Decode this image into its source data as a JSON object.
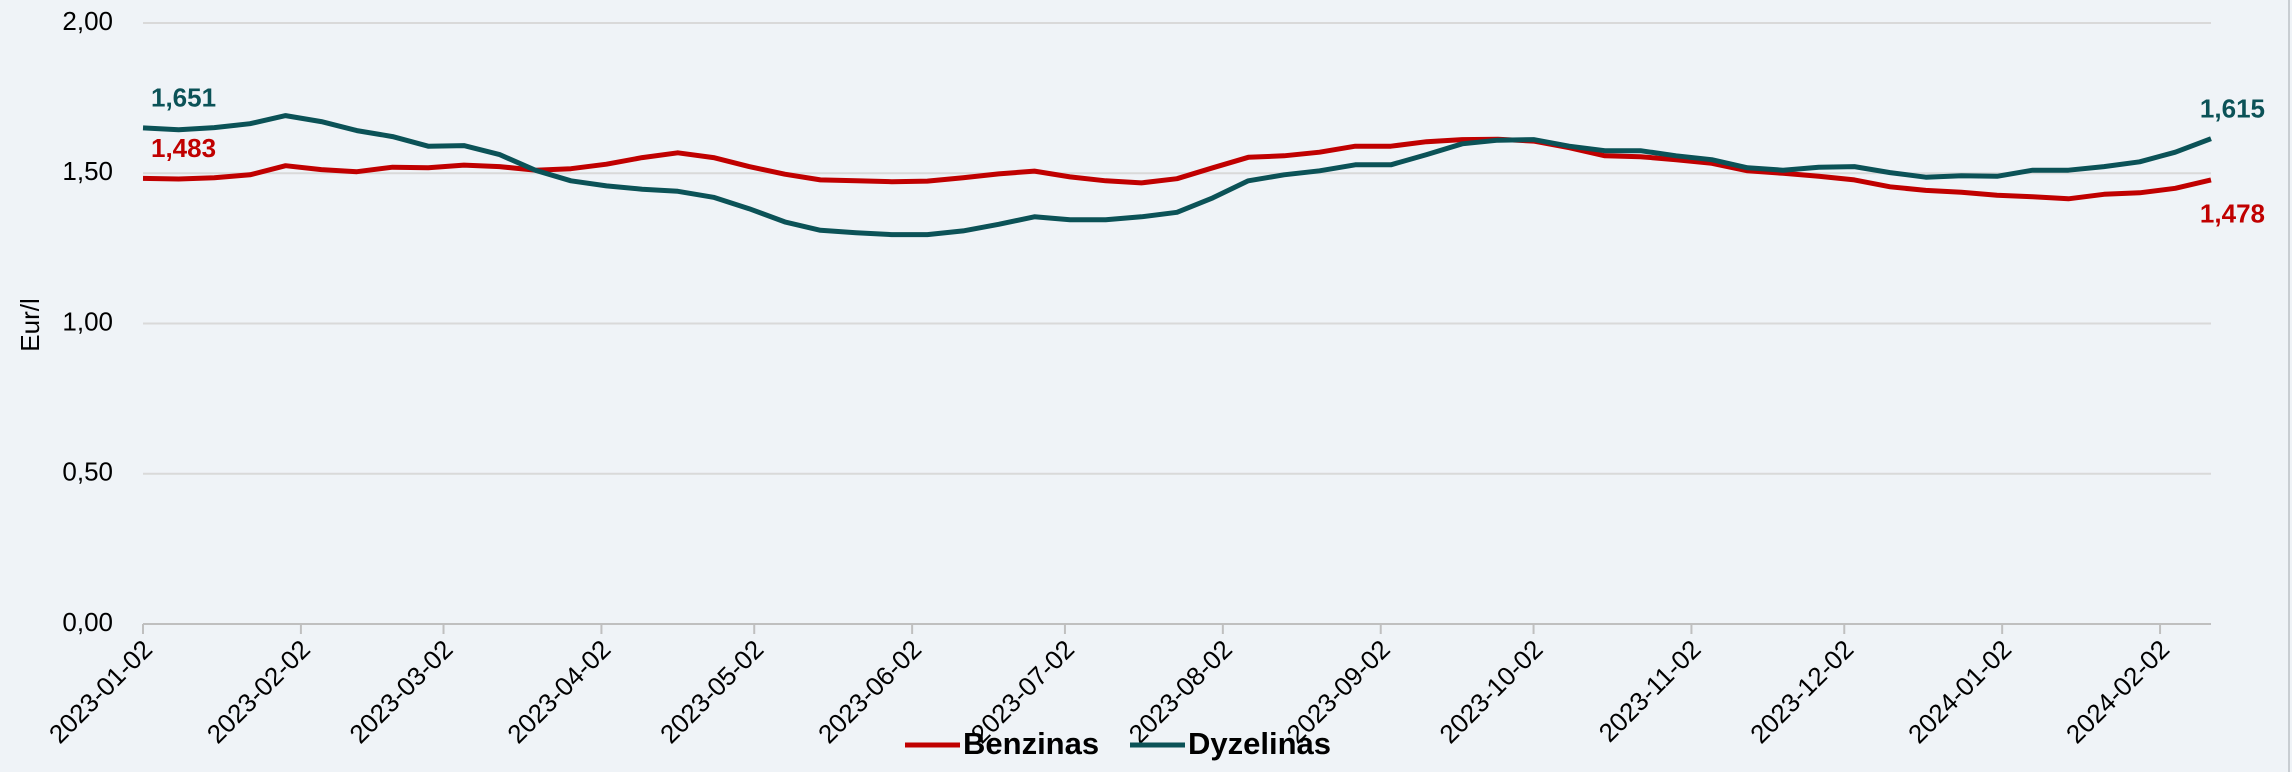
{
  "chart_data": {
    "type": "line",
    "ylabel": "Eur/l",
    "x": [
      "2023-01-02",
      "2023-01-09",
      "2023-01-16",
      "2023-01-23",
      "2023-01-30",
      "2023-02-06",
      "2023-02-13",
      "2023-02-20",
      "2023-02-27",
      "2023-03-06",
      "2023-03-13",
      "2023-03-20",
      "2023-03-27",
      "2023-04-03",
      "2023-04-10",
      "2023-04-17",
      "2023-04-24",
      "2023-05-01",
      "2023-05-08",
      "2023-05-15",
      "2023-05-22",
      "2023-05-29",
      "2023-06-05",
      "2023-06-12",
      "2023-06-19",
      "2023-06-26",
      "2023-07-03",
      "2023-07-10",
      "2023-07-17",
      "2023-07-24",
      "2023-07-31",
      "2023-08-07",
      "2023-08-14",
      "2023-08-21",
      "2023-08-28",
      "2023-09-04",
      "2023-09-11",
      "2023-09-18",
      "2023-09-25",
      "2023-10-02",
      "2023-10-09",
      "2023-10-16",
      "2023-10-23",
      "2023-10-30",
      "2023-11-06",
      "2023-11-13",
      "2023-11-20",
      "2023-11-27",
      "2023-12-04",
      "2023-12-11",
      "2023-12-18",
      "2023-12-25",
      "2024-01-01",
      "2024-01-08",
      "2024-01-15",
      "2024-01-22",
      "2024-01-29",
      "2024-02-05",
      "2024-02-12"
    ],
    "series": [
      {
        "name": "Benzinas",
        "color": "#c00000",
        "values": [
          1.483,
          1.481,
          1.485,
          1.495,
          1.525,
          1.512,
          1.505,
          1.52,
          1.518,
          1.527,
          1.522,
          1.51,
          1.515,
          1.53,
          1.552,
          1.568,
          1.552,
          1.522,
          1.497,
          1.478,
          1.475,
          1.472,
          1.474,
          1.485,
          1.498,
          1.507,
          1.488,
          1.475,
          1.468,
          1.482,
          1.518,
          1.553,
          1.558,
          1.57,
          1.59,
          1.59,
          1.605,
          1.612,
          1.613,
          1.607,
          1.585,
          1.558,
          1.555,
          1.545,
          1.533,
          1.508,
          1.5,
          1.49,
          1.478,
          1.455,
          1.443,
          1.437,
          1.427,
          1.422,
          1.415,
          1.43,
          1.435,
          1.45,
          1.478
        ],
        "value_labels": [
          "1,483",
          null,
          null,
          null,
          null,
          null,
          null,
          null,
          null,
          null,
          null,
          null,
          null,
          null,
          null,
          null,
          null,
          null,
          null,
          null,
          null,
          null,
          null,
          null,
          null,
          null,
          null,
          null,
          null,
          null,
          null,
          null,
          null,
          null,
          null,
          null,
          null,
          null,
          null,
          null,
          null,
          null,
          null,
          null,
          null,
          null,
          null,
          null,
          null,
          null,
          null,
          null,
          null,
          null,
          null,
          null,
          null,
          null,
          "1,478"
        ]
      },
      {
        "name": "Dyzelinas",
        "color": "#0b5257",
        "values": [
          1.651,
          1.645,
          1.652,
          1.665,
          1.692,
          1.672,
          1.642,
          1.622,
          1.59,
          1.592,
          1.562,
          1.51,
          1.475,
          1.458,
          1.447,
          1.44,
          1.42,
          1.382,
          1.338,
          1.31,
          1.302,
          1.296,
          1.296,
          1.308,
          1.33,
          1.355,
          1.345,
          1.345,
          1.355,
          1.37,
          1.418,
          1.475,
          1.495,
          1.508,
          1.528,
          1.528,
          1.562,
          1.598,
          1.61,
          1.612,
          1.59,
          1.575,
          1.575,
          1.558,
          1.545,
          1.518,
          1.51,
          1.52,
          1.522,
          1.502,
          1.487,
          1.492,
          1.49,
          1.51,
          1.51,
          1.522,
          1.538,
          1.57,
          1.615
        ],
        "value_labels": [
          "1,651",
          null,
          null,
          null,
          null,
          null,
          null,
          null,
          null,
          null,
          null,
          null,
          null,
          null,
          null,
          null,
          null,
          null,
          null,
          null,
          null,
          null,
          null,
          null,
          null,
          null,
          null,
          null,
          null,
          null,
          null,
          null,
          null,
          null,
          null,
          null,
          null,
          null,
          null,
          null,
          null,
          null,
          null,
          null,
          null,
          null,
          null,
          null,
          null,
          null,
          null,
          null,
          null,
          null,
          null,
          null,
          null,
          null,
          "1,615"
        ]
      }
    ],
    "xlim": [
      "2023-01-02",
      "2024-02-12"
    ],
    "xticks": [
      "2023-01-02",
      "2023-02-02",
      "2023-03-02",
      "2023-04-02",
      "2023-05-02",
      "2023-06-02",
      "2023-07-02",
      "2023-08-02",
      "2023-09-02",
      "2023-10-02",
      "2023-11-02",
      "2023-12-02",
      "2024-01-02",
      "2024-02-02"
    ],
    "ylim": [
      0,
      2
    ],
    "yticks": [
      {
        "value": 0,
        "label": "0,00"
      },
      {
        "value": 0.5,
        "label": "0,50"
      },
      {
        "value": 1,
        "label": "1,00"
      },
      {
        "value": 1.5,
        "label": "1,50"
      },
      {
        "value": 2,
        "label": "2,00"
      }
    ],
    "grid": true,
    "legend": "bottom"
  }
}
